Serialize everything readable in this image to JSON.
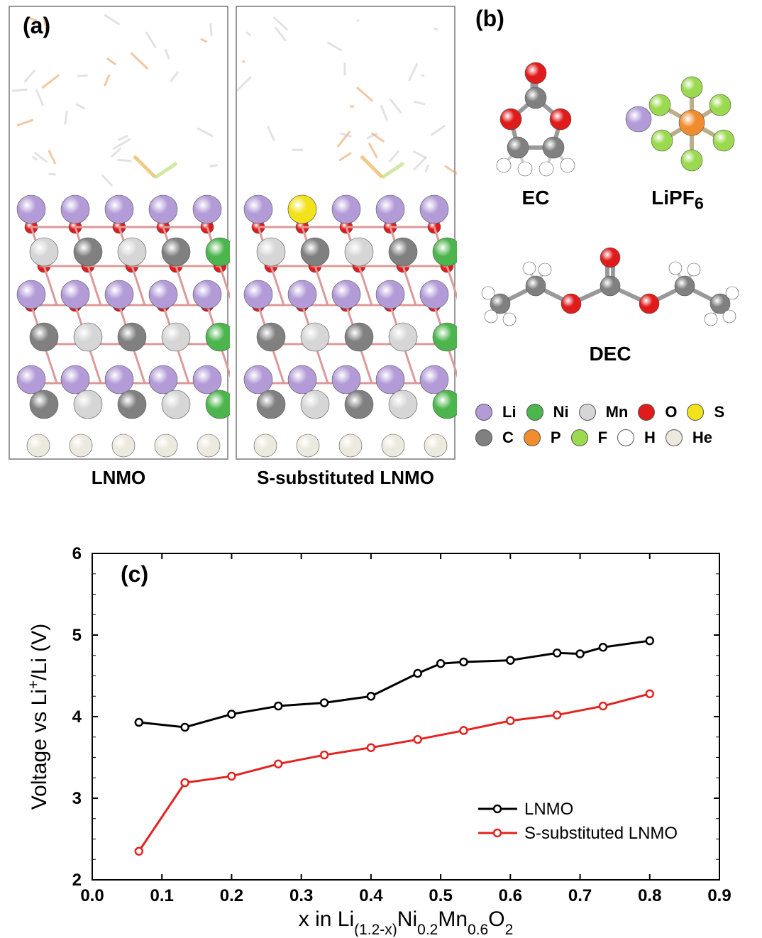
{
  "panel_a": {
    "label": "(a)",
    "left_caption": "LNMO",
    "right_caption": "S-substituted LNMO"
  },
  "panel_b": {
    "label": "(b)",
    "mol_ec": "EC",
    "mol_lipf6": "LiPF",
    "mol_lipf6_sub": "6",
    "mol_dec": "DEC"
  },
  "legend": {
    "elements": [
      {
        "name": "Li",
        "color": "#b39bd8"
      },
      {
        "name": "Ni",
        "color": "#4db54d"
      },
      {
        "name": "Mn",
        "color": "#d6d6d6"
      },
      {
        "name": "O",
        "color": "#e01b1b"
      },
      {
        "name": "S",
        "color": "#f2e21b"
      },
      {
        "name": "C",
        "color": "#808080"
      },
      {
        "name": "P",
        "color": "#f08c2e"
      },
      {
        "name": "F",
        "color": "#9bd94f"
      },
      {
        "name": "H",
        "color": "#ffffff"
      },
      {
        "name": "He",
        "color": "#ece9de"
      }
    ]
  },
  "panel_c": {
    "label": "(c)",
    "type": "line",
    "xlabel_prefix": "x in Li",
    "xlabel_sub1": "(1.2-x)",
    "xlabel_mid1": "Ni",
    "xlabel_sub2": "0.2",
    "xlabel_mid2": "Mn",
    "xlabel_sub3": "0.6",
    "xlabel_mid3": "O",
    "xlabel_sub4": "2",
    "ylabel_prefix": "Voltage vs Li",
    "ylabel_sup": "+",
    "ylabel_suffix": "/Li (V)",
    "xlim": [
      0.0,
      0.9
    ],
    "ylim": [
      2,
      6
    ],
    "xticks": [
      0.0,
      0.1,
      0.2,
      0.3,
      0.4,
      0.5,
      0.6,
      0.7,
      0.8,
      0.9
    ],
    "yticks": [
      2,
      3,
      4,
      5,
      6
    ],
    "tick_fontsize": 24,
    "label_fontsize": 30,
    "legend_fontsize": 24,
    "background_color": "#ffffff",
    "axis_color": "#000000",
    "line_width": 3,
    "marker_size": 5,
    "series": [
      {
        "name": "LNMO",
        "color": "#000000",
        "marker": "circle",
        "x": [
          0.067,
          0.133,
          0.2,
          0.267,
          0.333,
          0.4,
          0.467,
          0.5,
          0.533,
          0.6,
          0.667,
          0.7,
          0.733,
          0.8
        ],
        "y": [
          3.93,
          3.87,
          4.03,
          4.13,
          4.17,
          4.25,
          4.53,
          4.65,
          4.67,
          4.69,
          4.78,
          4.77,
          4.85,
          4.93
        ]
      },
      {
        "name": "S-substituted LNMO",
        "color": "#e3231f",
        "marker": "circle",
        "x": [
          0.067,
          0.133,
          0.2,
          0.267,
          0.333,
          0.4,
          0.467,
          0.533,
          0.6,
          0.667,
          0.733,
          0.8
        ],
        "y": [
          2.35,
          3.19,
          3.27,
          3.42,
          3.53,
          3.62,
          3.72,
          3.83,
          3.95,
          4.02,
          4.13,
          4.28
        ]
      }
    ]
  },
  "atom_colors": {
    "Li": "#b39bd8",
    "Ni": "#4db54d",
    "Mn": "#d6d6d6",
    "O": "#e01b1b",
    "S": "#f2e21b",
    "C": "#808080",
    "P": "#f08c2e",
    "F": "#9bd94f",
    "H": "#ffffff",
    "He": "#ece9de"
  }
}
